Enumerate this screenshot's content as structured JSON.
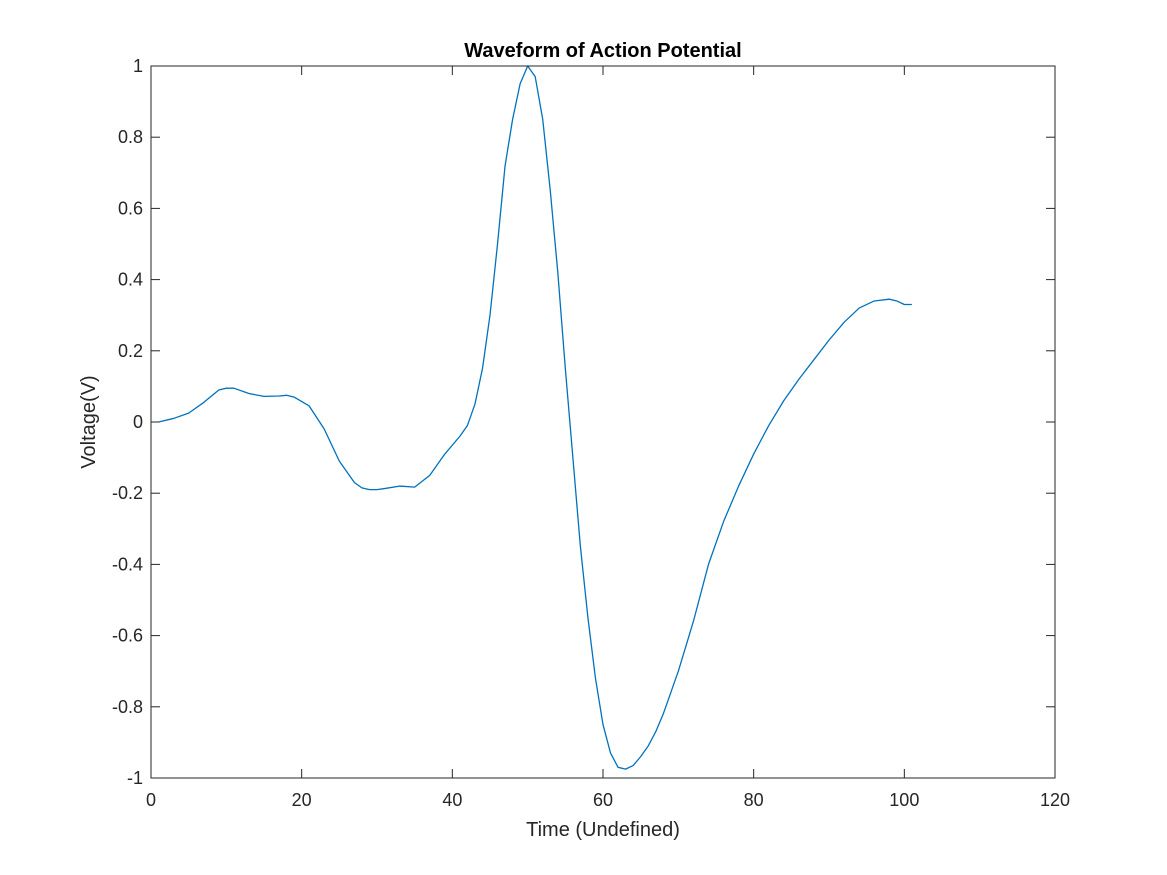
{
  "chart_data": {
    "type": "line",
    "title": "Waveform of Action Potential",
    "xlabel": "Time (Undefined)",
    "ylabel": "Voltage(V)",
    "xlim": [
      0,
      120
    ],
    "ylim": [
      -1,
      1
    ],
    "xticks": [
      0,
      20,
      40,
      60,
      80,
      100,
      120
    ],
    "yticks": [
      -1,
      -0.8,
      -0.6,
      -0.4,
      -0.2,
      0,
      0.2,
      0.4,
      0.6,
      0.8,
      1
    ],
    "xtick_labels": [
      "0",
      "20",
      "40",
      "60",
      "80",
      "100",
      "120"
    ],
    "ytick_labels": [
      "-1",
      "-0.8",
      "-0.6",
      "-0.4",
      "-0.2",
      "0",
      "0.2",
      "0.4",
      "0.6",
      "0.8",
      "1"
    ],
    "grid": false,
    "box": true,
    "line_color": "#0072BD",
    "series": [
      {
        "x": [
          1,
          3,
          5,
          7,
          9,
          10,
          11,
          13,
          15,
          17,
          18,
          19,
          21,
          23,
          25,
          27,
          28,
          29,
          30,
          31,
          33,
          35,
          37,
          39,
          41,
          42,
          43,
          44,
          45,
          46,
          47,
          48,
          49,
          50,
          51,
          52,
          53,
          54,
          55,
          56,
          57,
          58,
          59,
          60,
          61,
          62,
          63,
          64,
          65,
          66,
          67,
          68,
          69,
          70,
          72,
          74,
          76,
          78,
          80,
          82,
          84,
          86,
          88,
          90,
          92,
          94,
          96,
          98,
          99,
          100,
          101
        ],
        "y": [
          0.0,
          0.01,
          0.025,
          0.055,
          0.09,
          0.095,
          0.095,
          0.08,
          0.072,
          0.073,
          0.075,
          0.07,
          0.045,
          -0.02,
          -0.11,
          -0.17,
          -0.185,
          -0.19,
          -0.19,
          -0.187,
          -0.18,
          -0.183,
          -0.15,
          -0.09,
          -0.04,
          -0.01,
          0.05,
          0.15,
          0.3,
          0.5,
          0.72,
          0.85,
          0.95,
          1.0,
          0.97,
          0.85,
          0.65,
          0.42,
          0.15,
          -0.1,
          -0.35,
          -0.55,
          -0.72,
          -0.85,
          -0.93,
          -0.97,
          -0.975,
          -0.965,
          -0.94,
          -0.91,
          -0.87,
          -0.82,
          -0.76,
          -0.7,
          -0.56,
          -0.4,
          -0.28,
          -0.18,
          -0.09,
          -0.01,
          0.06,
          0.12,
          0.175,
          0.23,
          0.28,
          0.32,
          0.34,
          0.345,
          0.34,
          0.33,
          0.33
        ]
      }
    ]
  }
}
